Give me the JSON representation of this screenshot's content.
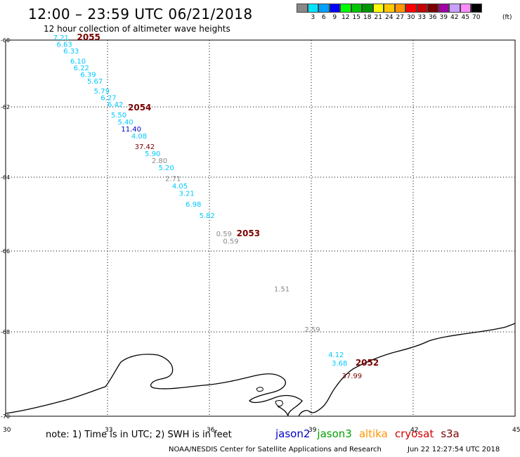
{
  "header": {
    "title": "12:00 – 23:59 UTC 06/21/2018",
    "subtitle": "12 hour collection of altimeter wave heights"
  },
  "legend": {
    "items": [
      {
        "label": "",
        "color": "#888888"
      },
      {
        "label": "3",
        "color": "#00e5ff"
      },
      {
        "label": "6",
        "color": "#00a0ff"
      },
      {
        "label": "9",
        "color": "#0000ff"
      },
      {
        "label": "12",
        "color": "#00ff00"
      },
      {
        "label": "15",
        "color": "#00c800"
      },
      {
        "label": "18",
        "color": "#009600"
      },
      {
        "label": "21",
        "color": "#ffff00"
      },
      {
        "label": "24",
        "color": "#ffc800"
      },
      {
        "label": "27",
        "color": "#ff9600"
      },
      {
        "label": "30",
        "color": "#ff0000"
      },
      {
        "label": "33",
        "color": "#c80000"
      },
      {
        "label": "36",
        "color": "#7a0000"
      },
      {
        "label": "39",
        "color": "#a000a0"
      },
      {
        "label": "42",
        "color": "#c8a0ff"
      },
      {
        "label": "45",
        "color": "#ff8cff"
      },
      {
        "label": "70",
        "color": "#000000"
      }
    ],
    "unit": "(ft)"
  },
  "axes": {
    "lat_labels": [
      "-60",
      "-62",
      "-64",
      "-66",
      "-68",
      "-70"
    ],
    "lon_labels": [
      "30",
      "33",
      "36",
      "39",
      "42",
      "45"
    ]
  },
  "track_labels": [
    {
      "text": "2055",
      "lon": 32.1,
      "lat": -60.0
    },
    {
      "text": "2054",
      "lon": 33.6,
      "lat": -62.1
    },
    {
      "text": "2053",
      "lon": 36.8,
      "lat": -65.6
    },
    {
      "text": "2052",
      "lon": 40.3,
      "lat": -68.8
    }
  ],
  "observations": [
    {
      "value": "7.21",
      "lon": 31.4,
      "lat": -60.0,
      "color": "#00c8ff"
    },
    {
      "value": "6.63",
      "lon": 31.5,
      "lat": -60.2,
      "color": "#00c8ff"
    },
    {
      "value": "6.33",
      "lon": 31.7,
      "lat": -60.4,
      "color": "#00c8ff"
    },
    {
      "value": "6.10",
      "lon": 31.9,
      "lat": -60.7,
      "color": "#00c8ff"
    },
    {
      "value": "6.22",
      "lon": 32.0,
      "lat": -60.9,
      "color": "#00c8ff"
    },
    {
      "value": "6.39",
      "lon": 32.2,
      "lat": -61.1,
      "color": "#00c8ff"
    },
    {
      "value": "5.67",
      "lon": 32.4,
      "lat": -61.3,
      "color": "#00c8ff"
    },
    {
      "value": "5.79",
      "lon": 32.6,
      "lat": -61.6,
      "color": "#00c8ff"
    },
    {
      "value": "6.27",
      "lon": 32.8,
      "lat": -61.8,
      "color": "#00c8ff"
    },
    {
      "value": "6.42",
      "lon": 33.0,
      "lat": -62.0,
      "color": "#00c8ff"
    },
    {
      "value": "5.50",
      "lon": 33.1,
      "lat": -62.3,
      "color": "#00c8ff"
    },
    {
      "value": "5.40",
      "lon": 33.3,
      "lat": -62.5,
      "color": "#00c8ff"
    },
    {
      "value": "11.40",
      "lon": 33.4,
      "lat": -62.7,
      "color": "#0000c8"
    },
    {
      "value": "4.08",
      "lon": 33.7,
      "lat": -62.9,
      "color": "#00c8ff"
    },
    {
      "value": "37.42",
      "lon": 33.8,
      "lat": -63.2,
      "color": "#7a0000"
    },
    {
      "value": "5.90",
      "lon": 34.1,
      "lat": -63.4,
      "color": "#00c8ff"
    },
    {
      "value": "2.80",
      "lon": 34.3,
      "lat": -63.6,
      "color": "#888888"
    },
    {
      "value": "5.20",
      "lon": 34.5,
      "lat": -63.8,
      "color": "#00c8ff"
    },
    {
      "value": "2.71",
      "lon": 34.7,
      "lat": -64.1,
      "color": "#888888"
    },
    {
      "value": "4.05",
      "lon": 34.9,
      "lat": -64.3,
      "color": "#00c8ff"
    },
    {
      "value": "3.21",
      "lon": 35.1,
      "lat": -64.5,
      "color": "#00c8ff"
    },
    {
      "value": "6.98",
      "lon": 35.3,
      "lat": -64.8,
      "color": "#00c8ff"
    },
    {
      "value": "5.82",
      "lon": 35.7,
      "lat": -65.1,
      "color": "#00c8ff"
    },
    {
      "value": "0.59",
      "lon": 36.2,
      "lat": -65.6,
      "color": "#888888"
    },
    {
      "value": "0.59",
      "lon": 36.4,
      "lat": -65.8,
      "color": "#888888"
    },
    {
      "value": "1.51",
      "lon": 37.9,
      "lat": -67.0,
      "color": "#888888"
    },
    {
      "value": "2.59",
      "lon": 38.8,
      "lat": -68.0,
      "color": "#888888"
    },
    {
      "value": "4.12",
      "lon": 39.5,
      "lat": -68.6,
      "color": "#00c8ff"
    },
    {
      "value": "3.68",
      "lon": 39.6,
      "lat": -68.8,
      "color": "#00c8ff"
    },
    {
      "value": "37.99",
      "lon": 39.9,
      "lat": -69.1,
      "color": "#7a0000"
    }
  ],
  "footer": {
    "note": "note: 1) Time is in UTC; 2) SWH is in feet",
    "satellites": [
      {
        "name": "jason2",
        "color": "#0000c8"
      },
      {
        "name": "jason3",
        "color": "#00a000"
      },
      {
        "name": "altika",
        "color": "#ff9600"
      },
      {
        "name": "cryosat",
        "color": "#d00000"
      },
      {
        "name": "s3a",
        "color": "#7a0000"
      }
    ],
    "credit": "NOAA/NESDIS Center for Satellite Applications and Research",
    "timestamp": "Jun 22 12:27:54 UTC 2018"
  }
}
